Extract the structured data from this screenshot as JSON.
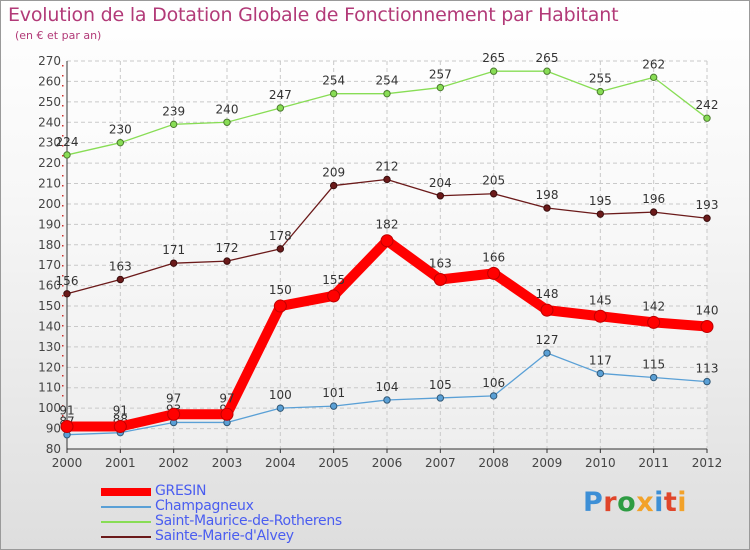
{
  "title": "Evolution de la Dotation Globale de Fonctionnement par Habitant",
  "subtitle": "(en € et par an)",
  "brand": {
    "logo_text": "Proxiti",
    "letter_colors": [
      "#3d8fd6",
      "#e0452a",
      "#2e9c43",
      "#f2a22a",
      "#3d8fd6",
      "#e0452a",
      "#f2a22a"
    ]
  },
  "chart_data": {
    "type": "line",
    "x": [
      "2000",
      "2001",
      "2002",
      "2003",
      "2004",
      "2005",
      "2006",
      "2007",
      "2008",
      "2009",
      "2010",
      "2011",
      "2012"
    ],
    "ylim": [
      80,
      270
    ],
    "yticks": [
      80,
      90,
      100,
      110,
      120,
      130,
      140,
      150,
      160,
      170,
      180,
      190,
      200,
      210,
      220,
      230,
      240,
      250,
      260,
      270
    ],
    "grid": true,
    "legend_position": "bottom-left",
    "series": [
      {
        "name": "GRESIN",
        "color": "#ff0000",
        "values": [
          91,
          91,
          97,
          97,
          150,
          155,
          182,
          163,
          166,
          148,
          145,
          142,
          140
        ]
      },
      {
        "name": "Champagneux",
        "color": "#5aa0d6",
        "values": [
          87,
          88,
          93,
          93,
          100,
          101,
          104,
          105,
          106,
          127,
          117,
          115,
          113
        ]
      },
      {
        "name": "Saint-Maurice-de-Rotherens",
        "color": "#88dd55",
        "values": [
          224,
          230,
          239,
          240,
          247,
          254,
          254,
          257,
          265,
          265,
          255,
          262,
          242
        ]
      },
      {
        "name": "Sainte-Marie-d'Alvey",
        "color": "#6b1a1a",
        "values": [
          156,
          163,
          171,
          172,
          178,
          209,
          212,
          204,
          205,
          198,
          195,
          196,
          193
        ]
      }
    ]
  }
}
